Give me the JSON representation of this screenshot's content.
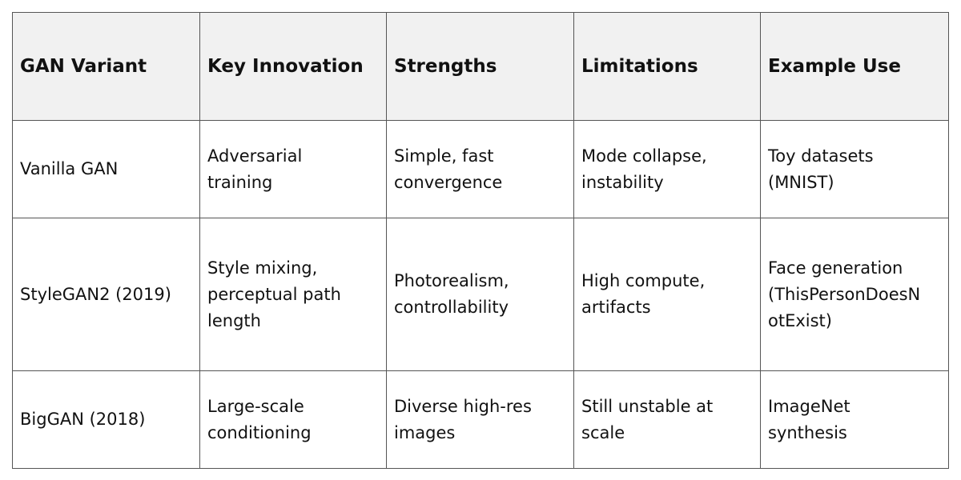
{
  "headers": [
    "GAN Variant",
    "Key Innovation",
    "Strengths",
    "Limitations",
    "Example Use"
  ],
  "rows": [
    [
      [
        "Vanilla GAN"
      ],
      [
        "Adversarial",
        "training"
      ],
      [
        "Simple, fast",
        "convergence"
      ],
      [
        "Mode collapse,",
        "instability"
      ],
      [
        "Toy datasets",
        "(MNIST)"
      ]
    ],
    [
      [
        "StyleGAN2 (2019)"
      ],
      [
        "Style mixing,",
        "perceptual path",
        "length"
      ],
      [
        "Photorealism,",
        "controllability"
      ],
      [
        "High compute,",
        "artifacts"
      ],
      [
        "Face generation",
        "(ThisPersonDoesN",
        "otExist)"
      ]
    ],
    [
      [
        "BigGAN (2018)"
      ],
      [
        "Large-scale",
        "conditioning"
      ],
      [
        "Diverse high-res",
        "images"
      ],
      [
        "Still unstable at",
        "scale"
      ],
      [
        "ImageNet",
        "synthesis"
      ]
    ]
  ],
  "colors": {
    "header_bg": "#f1f1f1",
    "border": "#555555"
  }
}
